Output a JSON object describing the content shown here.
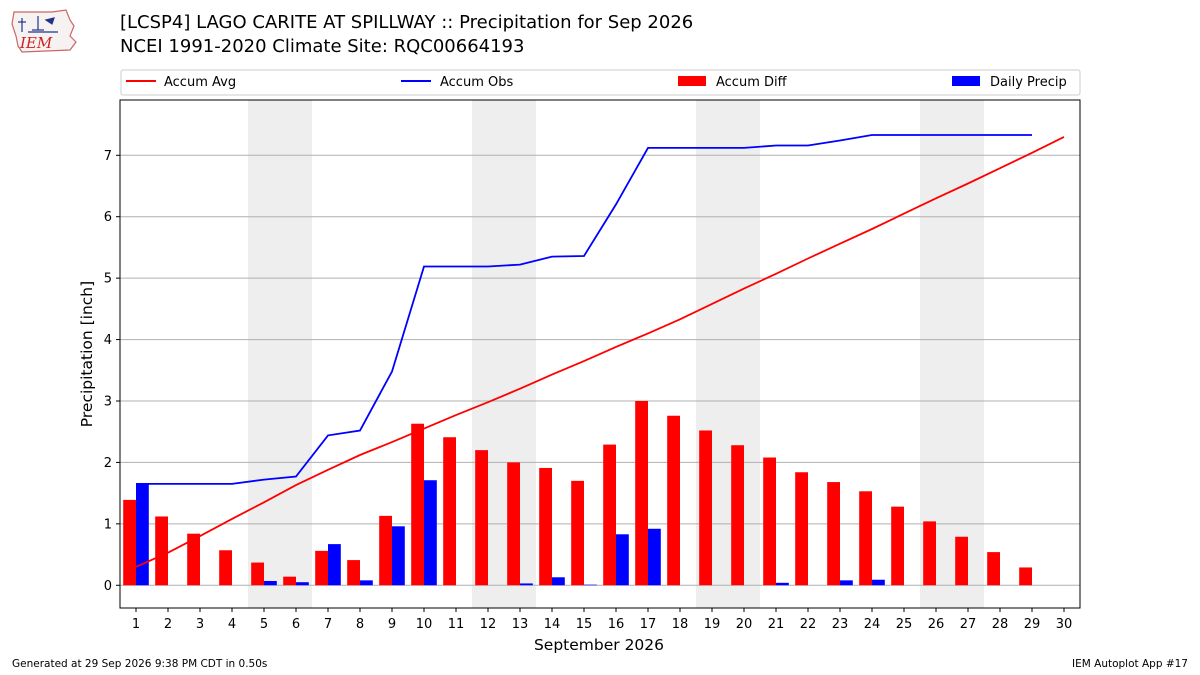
{
  "header": {
    "title_line1": "[LCSP4] LAGO CARITE AT SPILLWAY :: Precipitation for Sep 2026",
    "title_line2": "NCEI 1991-2020 Climate Site: RQC00664193"
  },
  "logo": {
    "text": "IEM"
  },
  "footer": {
    "generated": "Generated at 29 Sep 2026 9:38 PM CDT in 0.50s",
    "app": "IEM Autoplot App #17"
  },
  "colors": {
    "avg": "#ff0000",
    "obs": "#0000ff",
    "diff": "#ff0000",
    "daily": "#0000ff",
    "weekend": "#eeeeee",
    "grid": "#b0b0b0"
  },
  "chart_data": {
    "type": "bar",
    "xlabel": "September 2026",
    "ylabel": "Precipitation [inch]",
    "xlim": [
      0.5,
      30.5
    ],
    "ylim": [
      -0.37,
      7.9
    ],
    "yticks": [
      0,
      1,
      2,
      3,
      4,
      5,
      6,
      7
    ],
    "days": [
      1,
      2,
      3,
      4,
      5,
      6,
      7,
      8,
      9,
      10,
      11,
      12,
      13,
      14,
      15,
      16,
      17,
      18,
      19,
      20,
      21,
      22,
      23,
      24,
      25,
      26,
      27,
      28,
      29,
      30
    ],
    "weekend_days": [
      5,
      6,
      12,
      13,
      19,
      20,
      26,
      27
    ],
    "legend": [
      "Accum Avg",
      "Accum Obs",
      "Accum Diff",
      "Daily Precip"
    ],
    "legend_position": "top",
    "grid": "y",
    "series": [
      {
        "name": "Accum Avg",
        "kind": "line",
        "x": [
          1,
          2,
          3,
          4,
          5,
          6,
          7,
          8,
          9,
          10,
          11,
          12,
          13,
          14,
          15,
          16,
          17,
          18,
          19,
          20,
          21,
          22,
          23,
          24,
          25,
          26,
          27,
          28,
          29,
          30
        ],
        "values": [
          0.3,
          0.53,
          0.8,
          1.08,
          1.35,
          1.63,
          1.88,
          2.12,
          2.33,
          2.55,
          2.77,
          2.98,
          3.2,
          3.43,
          3.65,
          3.88,
          4.1,
          4.33,
          4.58,
          4.83,
          5.07,
          5.32,
          5.56,
          5.8,
          6.05,
          6.3,
          6.54,
          6.79,
          7.04,
          7.3
        ]
      },
      {
        "name": "Accum Obs",
        "kind": "line",
        "x": [
          1,
          2,
          3,
          4,
          5,
          6,
          7,
          8,
          9,
          10,
          11,
          12,
          13,
          14,
          15,
          16,
          17,
          18,
          19,
          20,
          21,
          22,
          23,
          24,
          25,
          26,
          27,
          28,
          29
        ],
        "values": [
          1.65,
          1.65,
          1.65,
          1.65,
          1.72,
          1.77,
          2.44,
          2.52,
          3.48,
          5.19,
          5.19,
          5.19,
          5.22,
          5.35,
          5.36,
          6.2,
          7.12,
          7.12,
          7.12,
          7.12,
          7.16,
          7.16,
          7.24,
          7.33,
          7.33,
          7.33,
          7.33,
          7.33,
          7.33
        ]
      },
      {
        "name": "Accum Diff",
        "kind": "bar",
        "x": [
          1,
          2,
          3,
          4,
          5,
          6,
          7,
          8,
          9,
          10,
          11,
          12,
          13,
          14,
          15,
          16,
          17,
          18,
          19,
          20,
          21,
          22,
          23,
          24,
          25,
          26,
          27,
          28,
          29
        ],
        "values": [
          1.39,
          1.12,
          0.84,
          0.57,
          0.37,
          0.14,
          0.56,
          0.41,
          1.13,
          2.63,
          2.41,
          2.2,
          2.0,
          1.91,
          1.7,
          2.29,
          3.0,
          2.76,
          2.52,
          2.28,
          2.08,
          1.84,
          1.68,
          1.53,
          1.28,
          1.04,
          0.79,
          0.54,
          0.29
        ]
      },
      {
        "name": "Daily Precip",
        "kind": "bar",
        "x": [
          1,
          2,
          3,
          4,
          5,
          6,
          7,
          8,
          9,
          10,
          11,
          12,
          13,
          14,
          15,
          16,
          17,
          18,
          19,
          20,
          21,
          22,
          23,
          24,
          25,
          26,
          27,
          28,
          29
        ],
        "values": [
          1.65,
          0,
          0,
          0,
          0.07,
          0.05,
          0.67,
          0.08,
          0.96,
          1.71,
          0,
          0,
          0.03,
          0.13,
          0.01,
          0.83,
          0.92,
          0,
          0,
          0,
          0.04,
          0,
          0.08,
          0.09,
          0,
          0,
          0,
          0,
          0
        ]
      }
    ]
  }
}
